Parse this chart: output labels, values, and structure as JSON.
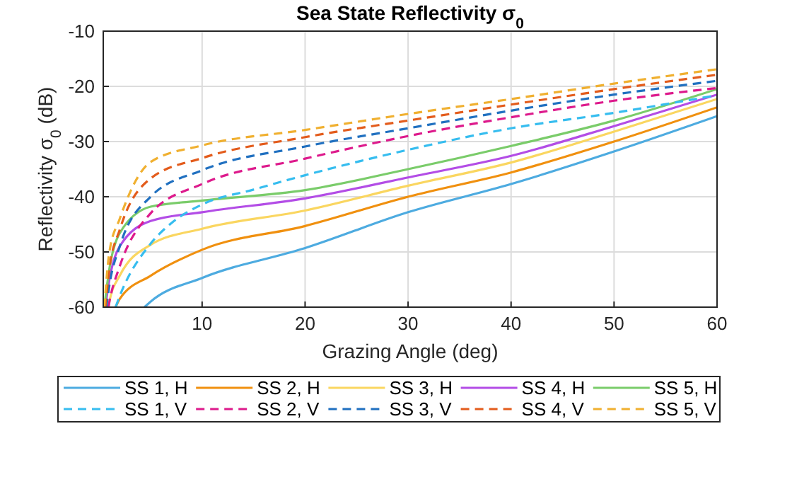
{
  "chart_data": {
    "type": "line",
    "title": "Sea State Reflectivity σ$_{0}$",
    "xlabel": "Grazing Angle (deg)",
    "ylabel": "Reflectivity σ$_{0}$ (dB)",
    "xlim": [
      0.4,
      60
    ],
    "xticks": [
      10,
      20,
      30,
      40,
      50,
      60
    ],
    "ylim": [
      -60,
      -10
    ],
    "yticks": [
      -60,
      -50,
      -40,
      -30,
      -20,
      -10
    ],
    "grid": true,
    "legend": "bottom",
    "line_style": "solid",
    "marker": "none",
    "series": [
      {
        "name": "SS 1, H",
        "color": "#4dabe0",
        "x": [
          4.4,
          5,
          10,
          20,
          30,
          40,
          50,
          60
        ],
        "values": [
          -60,
          -59,
          -54.7,
          -49.3,
          -42.8,
          -37.7,
          -31.8,
          -25.4
        ]
      },
      {
        "name": "SS 2, H",
        "color": "#f0900f",
        "x": [
          1.6,
          2,
          5,
          10,
          20,
          30,
          40,
          50,
          60
        ],
        "values": [
          -60,
          -58.5,
          -54.3,
          -49.6,
          -45.3,
          -40,
          -35.6,
          -30,
          -23.8
        ]
      },
      {
        "name": "SS 3, H",
        "color": "#fad660",
        "x": [
          0.9,
          1,
          2,
          5,
          10,
          20,
          30,
          40,
          50,
          60
        ],
        "values": [
          -60,
          -59,
          -54.3,
          -48.7,
          -45.8,
          -42.5,
          -38,
          -33.8,
          -28.2,
          -22.3
        ]
      },
      {
        "name": "SS 4, H",
        "color": "#b34de6",
        "x": [
          0.6,
          1,
          2,
          5,
          10,
          20,
          30,
          40,
          50,
          60
        ],
        "values": [
          -60,
          -55,
          -49,
          -44.4,
          -42.8,
          -40.3,
          -36.5,
          -32.6,
          -27.2,
          -21.5
        ]
      },
      {
        "name": "SS 5, H",
        "color": "#7acc6a",
        "x": [
          0.5,
          1,
          2,
          5,
          10,
          20,
          30,
          40,
          50,
          60
        ],
        "values": [
          -60,
          -53,
          -46.6,
          -41.8,
          -40.7,
          -38.8,
          -35,
          -30.8,
          -26.2,
          -20.5
        ]
      },
      {
        "name": "SS 1, V",
        "color": "#36bdef",
        "line_style": "dashed",
        "x": [
          1.6,
          2,
          5,
          7,
          10,
          15,
          20,
          30,
          40,
          50,
          60
        ],
        "values": [
          -60,
          -58,
          -48.5,
          -44.8,
          -41.4,
          -38.7,
          -36.1,
          -31.5,
          -27.6,
          -24.8,
          -21.6
        ]
      },
      {
        "name": "SS 2, V",
        "color": "#dd1a8c",
        "line_style": "dashed",
        "x": [
          0.9,
          1,
          2,
          5,
          10,
          20,
          30,
          40,
          50,
          60
        ],
        "values": [
          -60,
          -59,
          -52.6,
          -43,
          -37.7,
          -33.1,
          -29,
          -25.6,
          -22.6,
          -20.3
        ]
      },
      {
        "name": "SS 3, V",
        "color": "#2070c0",
        "line_style": "dashed",
        "x": [
          0.7,
          1,
          2,
          5,
          10,
          20,
          30,
          40,
          50,
          60
        ],
        "values": [
          -60,
          -56,
          -49,
          -40,
          -35.2,
          -30.9,
          -27.6,
          -24.4,
          -21.5,
          -19
        ]
      },
      {
        "name": "SS 4, V",
        "color": "#e35c1c",
        "line_style": "dashed",
        "x": [
          0.6,
          1,
          2,
          5,
          10,
          20,
          30,
          40,
          50,
          60
        ],
        "values": [
          -60,
          -53,
          -46,
          -36.7,
          -33,
          -29.2,
          -26.2,
          -23.3,
          -20.5,
          -17.9
        ]
      },
      {
        "name": "SS 5, V",
        "color": "#f0b030",
        "line_style": "dashed",
        "x": [
          0.5,
          1,
          2,
          5,
          10,
          20,
          30,
          40,
          50,
          60
        ],
        "values": [
          -60,
          -50,
          -44,
          -33.7,
          -30.7,
          -27.9,
          -25,
          -22.3,
          -19.5,
          -16.9
        ]
      }
    ]
  }
}
